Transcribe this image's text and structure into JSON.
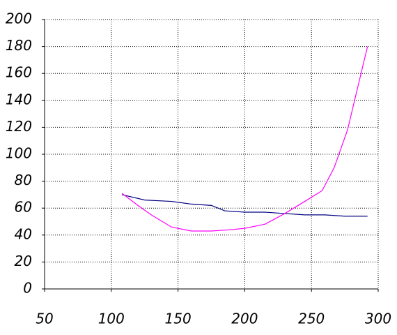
{
  "chart_data": {
    "type": "line",
    "series": [
      {
        "color": "#000080",
        "x": [
          108,
          125,
          145,
          160,
          175,
          185,
          200,
          215,
          230,
          245,
          260,
          275,
          292
        ],
        "values": [
          70,
          66,
          65,
          63,
          62,
          58,
          57,
          57,
          56,
          55,
          55,
          54,
          54
        ]
      },
      {
        "color": "#ff00ff",
        "x": [
          108,
          120,
          130,
          145,
          160,
          175,
          190,
          200,
          215,
          230,
          245,
          258,
          267,
          277,
          292
        ],
        "values": [
          71,
          62,
          55,
          46,
          43,
          43,
          44,
          45,
          48,
          56,
          65,
          73,
          90,
          118,
          180
        ]
      }
    ],
    "xlim": [
      50,
      300
    ],
    "xticks": [
      50,
      100,
      150,
      200,
      250,
      300
    ],
    "ylim": [
      0,
      200
    ],
    "yticks": [
      0,
      20,
      40,
      60,
      80,
      100,
      120,
      140,
      160,
      180,
      200
    ],
    "grid": true
  }
}
